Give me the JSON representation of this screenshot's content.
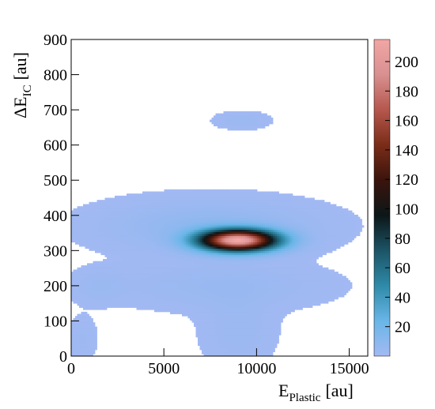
{
  "chart_data": {
    "type": "heatmap",
    "title": "",
    "x_axis": {
      "label_main": "E",
      "label_sub": "Plastic",
      "label_unit": "[au]",
      "range": [
        0,
        16000
      ],
      "ticks": [
        0,
        5000,
        10000,
        15000
      ],
      "tick_labels": [
        "0",
        "5000",
        "10000",
        "15000"
      ]
    },
    "y_axis": {
      "label_main": "ΔE",
      "label_sub": "IC",
      "label_unit": "[au]",
      "range": [
        0,
        900
      ],
      "ticks": [
        0,
        100,
        200,
        300,
        400,
        500,
        600,
        700,
        800,
        900
      ],
      "tick_labels": [
        "0",
        "100",
        "200",
        "300",
        "400",
        "500",
        "600",
        "700",
        "800",
        "900"
      ]
    },
    "z_axis": {
      "range": [
        0,
        215
      ],
      "ticks": [
        20,
        40,
        60,
        80,
        100,
        120,
        140,
        160,
        180,
        200
      ],
      "tick_labels": [
        "20",
        "40",
        "60",
        "80",
        "100",
        "120",
        "140",
        "160",
        "180",
        "200"
      ],
      "palette": [
        "#a3b9f3",
        "#69b6e8",
        "#2e8aa8",
        "#1c5466",
        "#0c1618",
        "#3a140c",
        "#7a2c18",
        "#b5574d",
        "#d99090",
        "#f2a6a6"
      ]
    },
    "features": [
      {
        "x_center": 9000,
        "y_center": 330,
        "x_sigma": 1400,
        "y_sigma": 20,
        "peak_count": 212
      },
      {
        "x_center": 7500,
        "y_center": 370,
        "x_sigma": 3500,
        "y_sigma": 45,
        "peak_count": 8
      },
      {
        "x_center": 9200,
        "y_center": 670,
        "x_sigma": 900,
        "y_sigma": 15,
        "peak_count": 3
      },
      {
        "x_center": 8000,
        "y_center": 200,
        "x_sigma": 3500,
        "y_sigma": 40,
        "peak_count": 4
      },
      {
        "x_center": 9000,
        "y_center": 80,
        "x_sigma": 1200,
        "y_sigma": 70,
        "peak_count": 3
      },
      {
        "x_center": 1500,
        "y_center": 200,
        "x_sigma": 900,
        "y_sigma": 30,
        "peak_count": 3
      },
      {
        "x_center": 600,
        "y_center": 50,
        "x_sigma": 500,
        "y_sigma": 40,
        "peak_count": 2
      }
    ],
    "grid": false
  }
}
